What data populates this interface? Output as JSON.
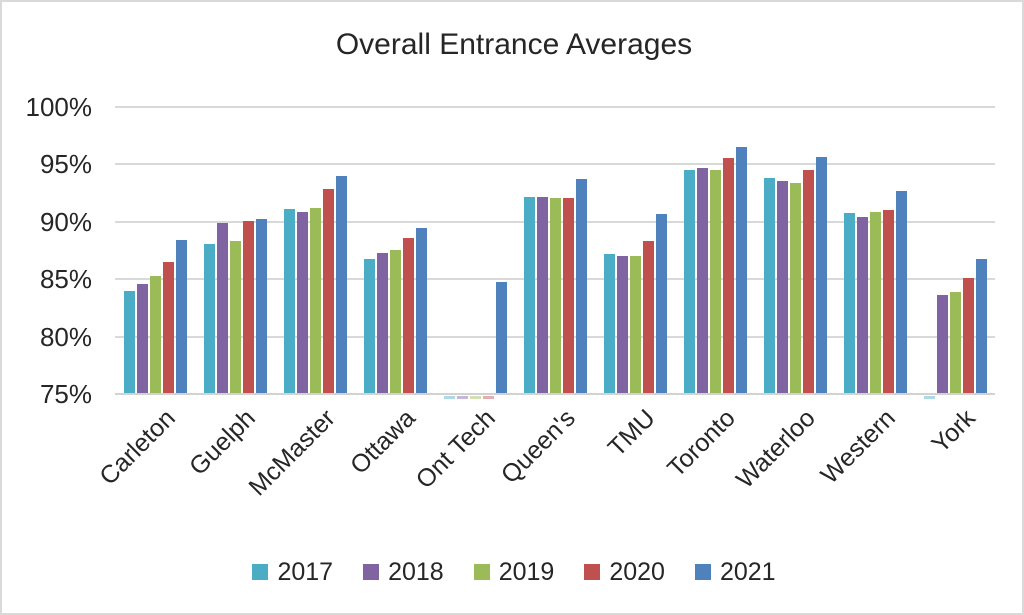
{
  "chart_data": {
    "type": "bar",
    "title": "Overall Entrance Averages",
    "categories": [
      "Carleton",
      "Guelph",
      "McMaster",
      "Ottawa",
      "Ont Tech",
      "Queen's",
      "TMU",
      "Toronto",
      "Waterloo",
      "Western",
      "York"
    ],
    "series": [
      {
        "name": "2017",
        "color": "#4BACC6",
        "values": [
          83.9,
          88.0,
          91.0,
          86.7,
          null,
          92.1,
          87.1,
          94.4,
          93.7,
          90.7,
          null
        ]
      },
      {
        "name": "2018",
        "color": "#8064A2",
        "values": [
          84.5,
          89.8,
          90.8,
          87.2,
          null,
          92.1,
          86.9,
          94.6,
          93.5,
          90.3,
          83.5
        ]
      },
      {
        "name": "2019",
        "color": "#9BBB59",
        "values": [
          85.2,
          88.2,
          91.1,
          87.5,
          null,
          92.0,
          86.9,
          94.4,
          93.3,
          90.8,
          83.8
        ]
      },
      {
        "name": "2020",
        "color": "#C0504D",
        "values": [
          86.4,
          90.0,
          92.8,
          88.5,
          null,
          92.0,
          88.2,
          95.5,
          94.4,
          90.9,
          85.0
        ]
      },
      {
        "name": "2021",
        "color": "#4F81BD",
        "values": [
          88.3,
          90.2,
          93.9,
          89.4,
          84.7,
          93.6,
          90.6,
          96.4,
          95.6,
          92.6,
          86.7
        ]
      }
    ],
    "xlabel": "",
    "ylabel": "",
    "y_ticks": [
      "100%",
      "95%",
      "90%",
      "85%",
      "80%",
      "75%"
    ],
    "ylim": [
      75,
      100
    ],
    "grid": true,
    "legend_position": "bottom",
    "note": "null values are below the 75% axis minimum and appear only as faint slivers under the axis line"
  },
  "colors": {
    "grid": "#D9D9D9",
    "text": "#262626",
    "background": "#FFFFFF",
    "border": "#D9D9D9"
  }
}
